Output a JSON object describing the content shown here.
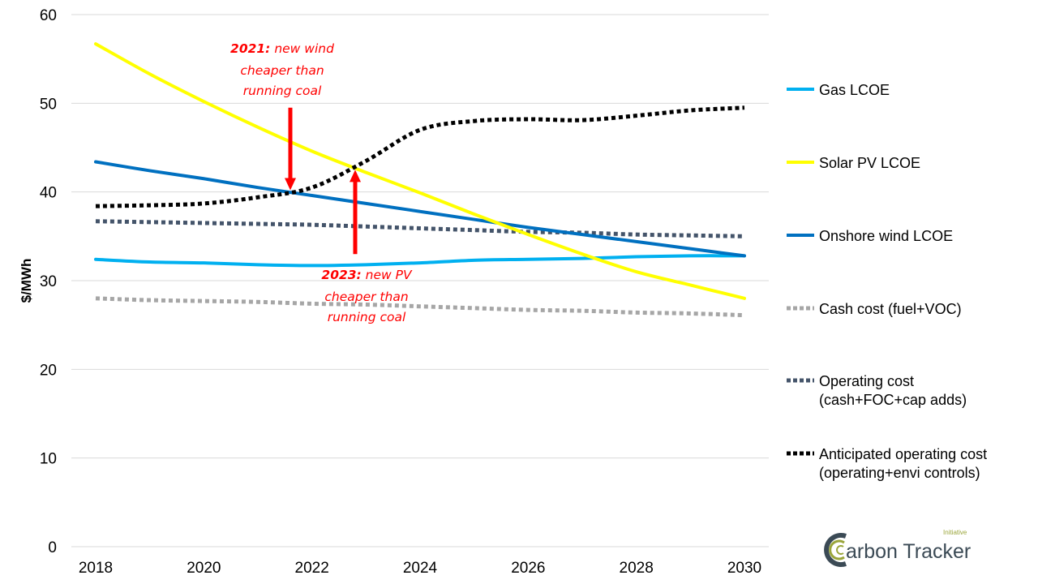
{
  "chart_data": {
    "type": "line",
    "title": "",
    "xlabel": "",
    "ylabel": "$/MWh",
    "ylim": [
      0,
      60
    ],
    "xlim": [
      2018,
      2030
    ],
    "yticks": [
      0,
      10,
      20,
      30,
      40,
      50,
      60
    ],
    "xticks": [
      2018,
      2020,
      2022,
      2024,
      2026,
      2028,
      2030
    ],
    "grid": "horizontal",
    "legend_placement": "right",
    "x": [
      2018,
      2019,
      2020,
      2021,
      2022,
      2023,
      2024,
      2025,
      2026,
      2027,
      2028,
      2029,
      2030
    ],
    "series": [
      {
        "name": "Gas LCOE",
        "color": "#00b0f0",
        "style": "solid",
        "values": [
          32.4,
          32.1,
          32.0,
          31.8,
          31.7,
          31.8,
          32.0,
          32.3,
          32.4,
          32.5,
          32.7,
          32.8,
          32.8
        ]
      },
      {
        "name": "Solar PV LCOE",
        "color": "#ffff00",
        "style": "solid",
        "values": [
          56.7,
          53.3,
          50.2,
          47.3,
          44.6,
          42.2,
          39.9,
          37.5,
          35.2,
          33.0,
          31.0,
          29.5,
          28.0
        ]
      },
      {
        "name": "Onshore wind LCOE",
        "color": "#0070c0",
        "style": "solid",
        "values": [
          43.4,
          42.4,
          41.5,
          40.5,
          39.6,
          38.7,
          37.8,
          36.9,
          36.0,
          35.2,
          34.4,
          33.6,
          32.8
        ]
      },
      {
        "name": "Cash cost (fuel+VOC)",
        "color": "#a6a6a6",
        "style": "dotted",
        "values": [
          28.0,
          27.8,
          27.7,
          27.6,
          27.4,
          27.3,
          27.1,
          26.9,
          26.7,
          26.6,
          26.4,
          26.3,
          26.1
        ]
      },
      {
        "name": "Operating cost",
        "name2": "(cash+FOC+cap adds)",
        "color": "#44546a",
        "style": "dotted",
        "values": [
          36.7,
          36.6,
          36.5,
          36.4,
          36.3,
          36.1,
          35.9,
          35.7,
          35.5,
          35.4,
          35.2,
          35.1,
          35.0
        ]
      },
      {
        "name": "Anticipated operating cost",
        "name2": "(operating+envi controls)",
        "color": "#000000",
        "style": "dotted",
        "values": [
          38.4,
          38.5,
          38.7,
          39.4,
          40.5,
          43.5,
          47.0,
          48.0,
          48.2,
          48.1,
          48.6,
          49.2,
          49.5
        ]
      }
    ],
    "annotations": [
      {
        "bold": "2021:",
        "lines": [
          " new wind",
          "cheaper than",
          "running coal"
        ],
        "x": 2021.6,
        "arrow": "down",
        "arrow_from": 49.5,
        "arrow_to": 40.2
      },
      {
        "bold": "2023:",
        "lines": [
          " new PV",
          "cheaper than",
          "running coal"
        ],
        "x": 2022.8,
        "arrow": "up",
        "arrow_from": 33.0,
        "arrow_to": 42.5
      }
    ]
  },
  "logo": {
    "text": "arbon Tracker",
    "initial": "C",
    "sub": "Initiative"
  }
}
